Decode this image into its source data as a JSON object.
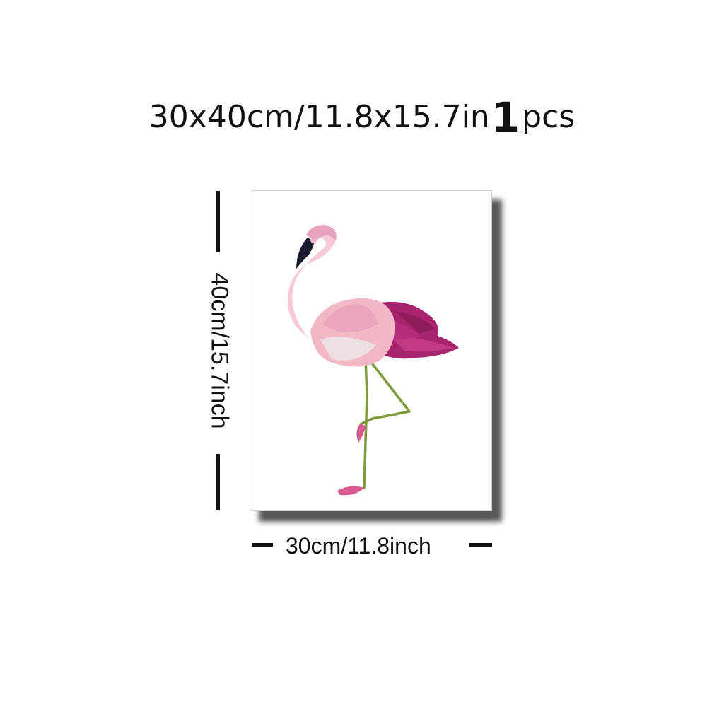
{
  "title": {
    "size_text": "30x40cm/11.8x15.7in",
    "quantity": "1",
    "unit": "pcs"
  },
  "dimensions": {
    "height_label": "40cm/15.7inch",
    "width_label": "30cm/11.8inch"
  },
  "artwork": {
    "subject": "flamingo",
    "colors": {
      "body_pink": "#f2b8c6",
      "neck_pink": "#f7c9d4",
      "wing_magenta": "#a8246e",
      "wing_dark": "#8e1c5c",
      "beak_black": "#1a1a2e",
      "leg_green": "#7f9a3a",
      "foot_pink": "#d9588f"
    }
  }
}
